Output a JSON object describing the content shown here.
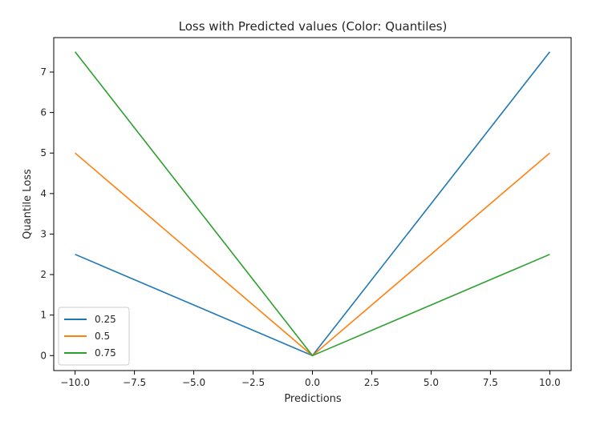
{
  "chart_data": {
    "type": "line",
    "title": "Loss with Predicted values (Color: Quantiles)",
    "xlabel": "Predictions",
    "ylabel": "Quantile Loss",
    "xlim": [
      -10.9,
      10.9
    ],
    "ylim": [
      -0.37,
      7.85
    ],
    "x_ticks": [
      -10.0,
      -7.5,
      -5.0,
      -2.5,
      0.0,
      2.5,
      5.0,
      7.5,
      10.0
    ],
    "x_tick_labels": [
      "−10.0",
      "−7.5",
      "−5.0",
      "−2.5",
      "0.0",
      "2.5",
      "5.0",
      "7.5",
      "10.0"
    ],
    "y_ticks": [
      0,
      1,
      2,
      3,
      4,
      5,
      6,
      7
    ],
    "y_tick_labels": [
      "0",
      "1",
      "2",
      "3",
      "4",
      "5",
      "6",
      "7"
    ],
    "grid": false,
    "legend_placement": "bottom-left",
    "series": [
      {
        "name": "0.25",
        "color": "#1f77b4",
        "x": [
          -10,
          0,
          10
        ],
        "y": [
          2.5,
          0,
          7.5
        ]
      },
      {
        "name": "0.5",
        "color": "#ff7f0e",
        "x": [
          -10,
          0,
          10
        ],
        "y": [
          5.0,
          0,
          5.0
        ]
      },
      {
        "name": "0.75",
        "color": "#2ca02c",
        "x": [
          -10,
          0,
          10
        ],
        "y": [
          7.5,
          0,
          2.5
        ]
      }
    ]
  }
}
